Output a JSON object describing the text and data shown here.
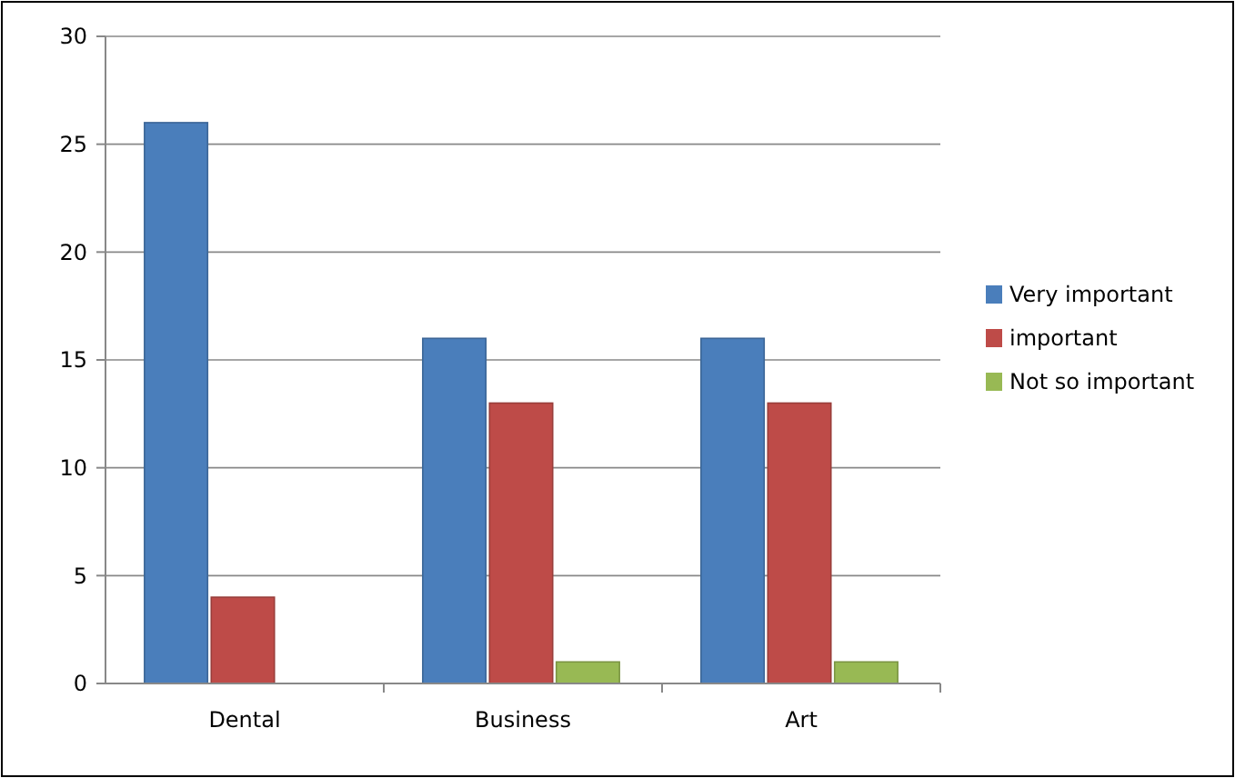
{
  "chart_data": {
    "type": "bar",
    "categories": [
      "Dental",
      "Business",
      "Art"
    ],
    "series": [
      {
        "name": "Very important",
        "color": "#4a7ebb",
        "values": [
          26,
          16,
          16
        ]
      },
      {
        "name": "important",
        "color": "#be4b48",
        "values": [
          4,
          13,
          13
        ]
      },
      {
        "name": "Not so important",
        "color": "#98b954",
        "values": [
          0,
          1,
          1
        ]
      }
    ],
    "ylim": [
      0,
      30
    ],
    "yticks": [
      0,
      5,
      10,
      15,
      20,
      25,
      30
    ],
    "grid": "y",
    "legend": "right"
  }
}
